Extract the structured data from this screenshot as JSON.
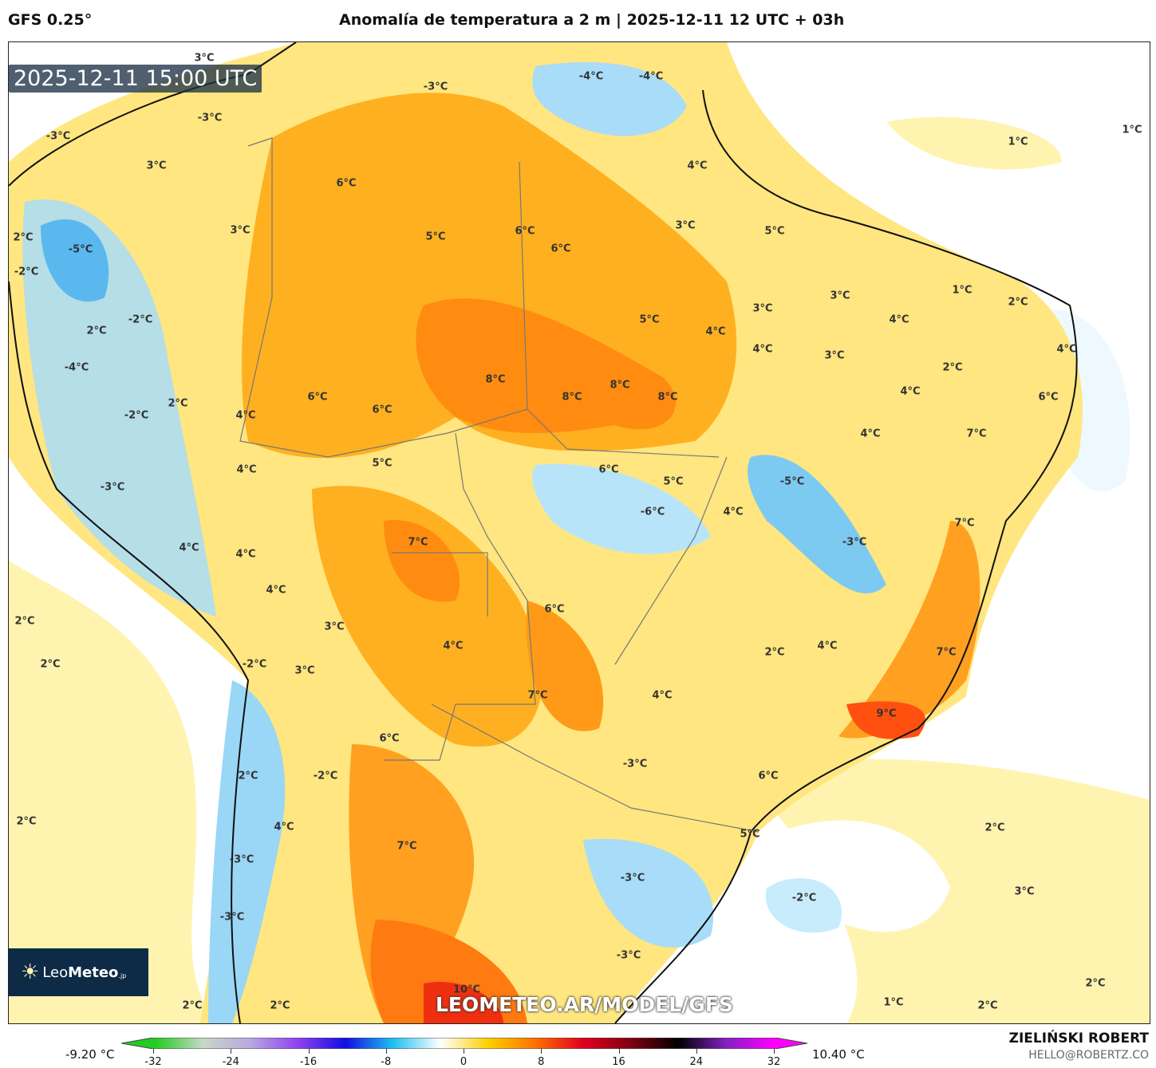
{
  "header": {
    "model": "GFS 0.25°",
    "title": "Anomalía de temperatura a 2 m | 2025-12-11 12 UTC + 03h"
  },
  "map": {
    "valid_time": "2025-12-11 15:00 UTC",
    "watermark": "LEOMETEO.AR/MODEL/GFS",
    "logo": {
      "name_light": "Leo",
      "name_bold": "Meteo",
      "suffix": ".jp"
    },
    "contour_labels": [
      "3°C",
      "-3°C",
      "-4°C",
      "-4°C",
      "-3°C",
      "-3°C",
      "3°C",
      "6°C",
      "4°C",
      "1°C",
      "1°C",
      "2°C",
      "-5°C",
      "3°C",
      "5°C",
      "6°C",
      "6°C",
      "3°C",
      "5°C",
      "-2°C",
      "1°C",
      "3°C",
      "2°C",
      "-2°C",
      "2°C",
      "3°C",
      "5°C",
      "4°C",
      "4°C",
      "4°C",
      "4°C",
      "3°C",
      "-4°C",
      "2°C",
      "8°C",
      "8°C",
      "8°C",
      "8°C",
      "6°C",
      "4°C",
      "6°C",
      "2°C",
      "6°C",
      "4°C",
      "-2°C",
      "4°C",
      "7°C",
      "6°C",
      "5°C",
      "4°C",
      "5°C",
      "-5°C",
      "-3°C",
      "-6°C",
      "4°C",
      "7°C",
      "7°C",
      "-3°C",
      "4°C",
      "4°C",
      "4°C",
      "6°C",
      "2°C",
      "3°C",
      "4°C",
      "4°C",
      "2°C",
      "7°C",
      "2°C",
      "-2°C",
      "3°C",
      "7°C",
      "4°C",
      "9°C",
      "6°C",
      "-3°C",
      "2°C",
      "-2°C",
      "6°C",
      "2°C",
      "4°C",
      "2°C",
      "5°C",
      "7°C",
      "-3°C",
      "-3°C",
      "3°C",
      "-2°C",
      "-3°C",
      "-3°C",
      "2°C",
      "10°C",
      "2°C",
      "2°C",
      "1°C",
      "2°C"
    ]
  },
  "colorbar": {
    "min_label": "-9.20 °C",
    "max_label": "10.40 °C",
    "ticks": [
      "-32",
      "-24",
      "-16",
      "-8",
      "0",
      "8",
      "16",
      "24",
      "32"
    ],
    "colors": [
      "#22cc22",
      "#c8d8c8",
      "#b8a8e0",
      "#9040f0",
      "#1010e0",
      "#20c0f0",
      "#ffffff",
      "#ffd000",
      "#ff7000",
      "#e00020",
      "#800010",
      "#000000",
      "#8020c0",
      "#ff00ff"
    ]
  },
  "footer": {
    "author": "ZIELIŃSKI ROBERT",
    "email": "HELLO@ROBERTZ.CO"
  }
}
